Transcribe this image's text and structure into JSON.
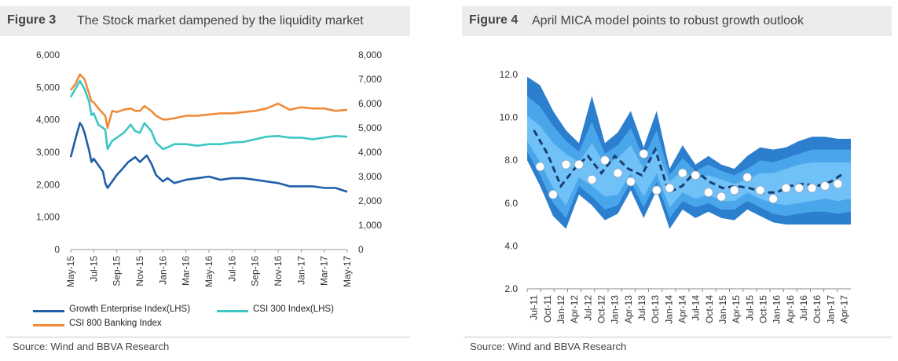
{
  "figure3": {
    "label": "Figure 3",
    "title": "The Stock market dampened by the liquidity market",
    "source": "Source: Wind and BBVA Research",
    "colors": {
      "growth": "#1f5ea8",
      "csi300": "#3cc6c4",
      "banking": "#ef8b3b"
    },
    "legend": {
      "growth": "Growth Enterprise Index(LHS)",
      "csi300": "CSI 300 Index(LHS)",
      "banking": "CSI 800 Banking Index"
    }
  },
  "figure4": {
    "label": "Figure 4",
    "title": "April MICA model points to robust growth outlook",
    "source": "Source: Wind and BBVA Research",
    "colors": {
      "outer": "#2c7fcf",
      "mid": "#4aa6ea",
      "inner": "#6fc1f7",
      "line": "#1a3e74",
      "marker": "#ffffff"
    }
  },
  "chart_data": [
    {
      "type": "line",
      "title": "The Stock market dampened by the liquidity market",
      "x_ticks": [
        "May-15",
        "Jul-15",
        "Sep-15",
        "Nov-15",
        "Jan-16",
        "Mar-16",
        "May-16",
        "Jul-16",
        "Sep-16",
        "Nov-16",
        "Jan-17",
        "Mar-17",
        "May-17"
      ],
      "y_left_ticks": [
        "0",
        "1,000",
        "2,000",
        "3,000",
        "4,000",
        "5,000",
        "6,000"
      ],
      "y_right_ticks": [
        "0",
        "1,000",
        "2,000",
        "3,000",
        "4,000",
        "5,000",
        "6,000",
        "7,000",
        "8,000"
      ],
      "ylim_left": [
        0,
        6000
      ],
      "ylim_right": [
        0,
        8000
      ],
      "grid": false,
      "legend_position": "bottom",
      "series": [
        {
          "name": "Growth Enterprise Index(LHS)",
          "axis": "left",
          "x": [
            0,
            0.2,
            0.4,
            0.5,
            0.6,
            0.8,
            0.9,
            1,
            1.2,
            1.4,
            1.5,
            1.6,
            1.8,
            2,
            2.2,
            2.5,
            2.8,
            3,
            3.3,
            3.5,
            3.7,
            4,
            4.2,
            4.5,
            5,
            5.5,
            6,
            6.5,
            7,
            7.5,
            8,
            8.5,
            9,
            9.5,
            10,
            10.5,
            11,
            11.5,
            12
          ],
          "values": [
            2850,
            3400,
            3900,
            3800,
            3600,
            3050,
            2700,
            2800,
            2600,
            2400,
            2050,
            1900,
            2100,
            2300,
            2450,
            2700,
            2850,
            2700,
            2900,
            2650,
            2300,
            2100,
            2200,
            2050,
            2150,
            2200,
            2250,
            2150,
            2200,
            2200,
            2150,
            2100,
            2050,
            1950,
            1950,
            1950,
            1900,
            1900,
            1780
          ]
        },
        {
          "name": "CSI 300 Index(LHS)",
          "axis": "left",
          "x": [
            0,
            0.2,
            0.4,
            0.6,
            0.8,
            0.9,
            1,
            1.2,
            1.5,
            1.6,
            1.8,
            2,
            2.3,
            2.6,
            2.8,
            3,
            3.2,
            3.5,
            3.7,
            4,
            4.2,
            4.5,
            5,
            5.5,
            6,
            6.5,
            7,
            7.5,
            8,
            8.5,
            9,
            9.5,
            10,
            10.5,
            11,
            11.5,
            12
          ],
          "values": [
            4700,
            4950,
            5200,
            4950,
            4550,
            4150,
            4200,
            3850,
            3700,
            3100,
            3350,
            3450,
            3600,
            3850,
            3650,
            3600,
            3900,
            3650,
            3300,
            3100,
            3150,
            3250,
            3250,
            3200,
            3250,
            3250,
            3300,
            3320,
            3400,
            3480,
            3500,
            3450,
            3450,
            3400,
            3450,
            3500,
            3480
          ]
        },
        {
          "name": "CSI 800 Banking Index",
          "axis": "right",
          "x": [
            0,
            0.2,
            0.4,
            0.6,
            0.8,
            0.9,
            1,
            1.2,
            1.5,
            1.6,
            1.8,
            2,
            2.3,
            2.6,
            2.8,
            3,
            3.2,
            3.5,
            3.7,
            4,
            4.2,
            4.5,
            5,
            5.5,
            6,
            6.5,
            7,
            7.5,
            8,
            8.5,
            9,
            9.5,
            10,
            10.5,
            11,
            11.5,
            12
          ],
          "values": [
            6550,
            6800,
            7200,
            7000,
            6400,
            6100,
            6050,
            5800,
            5500,
            5000,
            5700,
            5650,
            5750,
            5800,
            5700,
            5700,
            5900,
            5700,
            5500,
            5350,
            5350,
            5400,
            5500,
            5500,
            5550,
            5600,
            5600,
            5650,
            5700,
            5800,
            6000,
            5750,
            5850,
            5800,
            5800,
            5700,
            5750
          ]
        }
      ]
    },
    {
      "type": "area",
      "title": "April MICA model points to robust growth outlook",
      "x_ticks": [
        "Jul-11",
        "Oct-11",
        "Jan-12",
        "Apr-12",
        "Jul-12",
        "Oct-12",
        "Jan-13",
        "Apr-13",
        "Jul-13",
        "Oct-13",
        "Jan-14",
        "Apr-14",
        "Jul-14",
        "Oct-14",
        "Jan-15",
        "Apr-15",
        "Jul-15",
        "Oct-15",
        "Jan-16",
        "Apr-16",
        "Jul-16",
        "Oct-16",
        "Jan-17",
        "Apr-17"
      ],
      "y_ticks": [
        "2.0",
        "4.0",
        "6.0",
        "8.0",
        "10.0",
        "12.0"
      ],
      "ylim": [
        2,
        12
      ],
      "grid": false,
      "quarters": [
        0,
        1,
        2,
        3,
        4,
        5,
        6,
        7,
        8,
        9,
        10,
        11,
        12,
        13,
        14,
        15,
        16,
        17,
        18,
        19,
        20,
        21,
        22,
        23
      ],
      "model_line": [
        9.4,
        8.3,
        6.8,
        7.6,
        8.2,
        7.4,
        8.2,
        7.6,
        7.3,
        8.5,
        6.5,
        6.8,
        7.5,
        7.0,
        6.7,
        6.8,
        6.7,
        6.5,
        6.5,
        6.8,
        6.9,
        6.8,
        7.0,
        7.4
      ],
      "actual_points": [
        {
          "q": 1,
          "v": 7.7
        },
        {
          "q": 2,
          "v": 6.4
        },
        {
          "q": 3,
          "v": 7.8
        },
        {
          "q": 4,
          "v": 7.8
        },
        {
          "q": 5,
          "v": 7.1
        },
        {
          "q": 6,
          "v": 8.0
        },
        {
          "q": 7,
          "v": 7.4
        },
        {
          "q": 8,
          "v": 7.0
        },
        {
          "q": 9,
          "v": 8.3
        },
        {
          "q": 10,
          "v": 6.6
        },
        {
          "q": 11,
          "v": 6.7
        },
        {
          "q": 12,
          "v": 7.4
        },
        {
          "q": 13,
          "v": 7.3
        },
        {
          "q": 14,
          "v": 6.5
        },
        {
          "q": 15,
          "v": 6.3
        },
        {
          "q": 16,
          "v": 6.6
        },
        {
          "q": 17,
          "v": 7.2
        },
        {
          "q": 18,
          "v": 6.6
        },
        {
          "q": 19,
          "v": 6.2
        },
        {
          "q": 20,
          "v": 6.7
        },
        {
          "q": 21,
          "v": 6.7
        },
        {
          "q": 22,
          "v": 6.7
        },
        {
          "q": 23,
          "v": 6.8
        },
        {
          "q": 24,
          "v": 6.9
        }
      ],
      "band_outer_upper": [
        11.9,
        11.5,
        10.3,
        9.4,
        8.8,
        11.0,
        8.8,
        9.3,
        10.3,
        8.6,
        10.3,
        7.6,
        8.7,
        7.8,
        8.2,
        7.8,
        7.6,
        8.2,
        8.6,
        8.5,
        8.6,
        8.9,
        9.1,
        9.1,
        9.0,
        9.0
      ],
      "band_outer_lower": [
        8.0,
        6.8,
        5.4,
        4.8,
        6.4,
        5.9,
        5.2,
        5.5,
        6.6,
        5.3,
        6.6,
        4.8,
        5.7,
        5.3,
        5.6,
        5.3,
        5.2,
        5.7,
        5.4,
        5.1,
        5.0,
        5.0,
        5.0,
        5.0,
        5.0,
        5.0
      ],
      "band_mid_upper": [
        11.0,
        10.5,
        9.6,
        8.9,
        8.4,
        9.8,
        8.3,
        8.7,
        9.5,
        8.1,
        9.4,
        7.3,
        8.1,
        7.5,
        7.8,
        7.5,
        7.3,
        7.6,
        8.0,
        7.9,
        8.1,
        8.3,
        8.5,
        8.5,
        8.5,
        8.5
      ],
      "band_mid_lower": [
        8.4,
        7.3,
        6.0,
        5.3,
        6.8,
        6.3,
        5.7,
        5.9,
        7.0,
        5.8,
        7.0,
        5.3,
        6.1,
        5.8,
        6.0,
        5.7,
        5.7,
        6.1,
        5.8,
        5.5,
        5.4,
        5.5,
        5.6,
        5.6,
        5.5,
        5.6
      ],
      "band_inner_upper": [
        10.1,
        9.6,
        8.8,
        8.3,
        7.9,
        8.8,
        7.8,
        8.1,
        8.7,
        7.6,
        8.5,
        7.0,
        7.5,
        7.1,
        7.3,
        7.1,
        6.9,
        7.1,
        7.4,
        7.4,
        7.6,
        7.8,
        7.9,
        7.9,
        7.9,
        7.9
      ],
      "band_inner_lower": [
        8.9,
        7.9,
        6.7,
        5.9,
        7.2,
        6.8,
        6.3,
        6.4,
        7.4,
        6.3,
        7.4,
        5.8,
        6.5,
        6.2,
        6.4,
        6.1,
        6.1,
        6.5,
        6.2,
        6.0,
        5.9,
        6.0,
        6.1,
        6.2,
        6.1,
        6.2
      ]
    }
  ]
}
